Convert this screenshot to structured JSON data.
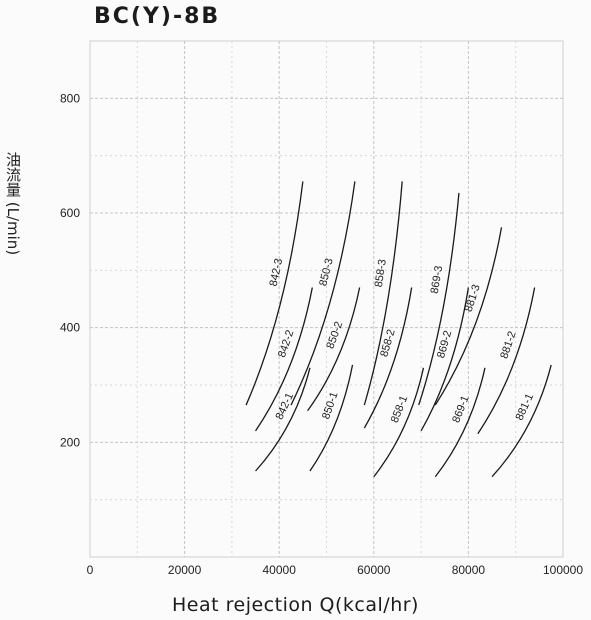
{
  "chart_data": {
    "type": "line",
    "title": "BC(Y)-8B",
    "xlabel": "Heat rejection Q(kcal/hr)",
    "ylabel": "油流量 (L/min)",
    "xlim": [
      0,
      100000
    ],
    "ylim": [
      0,
      900
    ],
    "grid": true,
    "x_ticks": [
      0,
      20000,
      40000,
      60000,
      80000,
      100000
    ],
    "x_tick_labels": [
      "0",
      "20000",
      "40000",
      "60000",
      "80000",
      "100000"
    ],
    "y_ticks": [
      200,
      400,
      600,
      800
    ],
    "y_tick_labels": [
      "200",
      "400",
      "600",
      "800"
    ],
    "series": [
      {
        "name": "842-1",
        "points": [
          [
            35000,
            150
          ],
          [
            46500,
            330
          ]
        ]
      },
      {
        "name": "842-2",
        "points": [
          [
            35000,
            220
          ],
          [
            47000,
            470
          ]
        ]
      },
      {
        "name": "842-3",
        "points": [
          [
            33000,
            265
          ],
          [
            45000,
            655
          ]
        ]
      },
      {
        "name": "850-1",
        "points": [
          [
            46500,
            150
          ],
          [
            55500,
            335
          ]
        ]
      },
      {
        "name": "850-2",
        "points": [
          [
            46000,
            255
          ],
          [
            57000,
            470
          ]
        ]
      },
      {
        "name": "850-3",
        "points": [
          [
            42500,
            265
          ],
          [
            56000,
            655
          ]
        ]
      },
      {
        "name": "858-1",
        "points": [
          [
            60000,
            140
          ],
          [
            70500,
            330
          ]
        ]
      },
      {
        "name": "858-2",
        "points": [
          [
            58000,
            225
          ],
          [
            68000,
            470
          ]
        ]
      },
      {
        "name": "858-3",
        "points": [
          [
            58000,
            265
          ],
          [
            66000,
            655
          ]
        ]
      },
      {
        "name": "869-1",
        "points": [
          [
            73000,
            140
          ],
          [
            83500,
            330
          ]
        ]
      },
      {
        "name": "869-2",
        "points": [
          [
            70000,
            220
          ],
          [
            80000,
            470
          ]
        ]
      },
      {
        "name": "869-3",
        "points": [
          [
            69500,
            265
          ],
          [
            78000,
            635
          ]
        ]
      },
      {
        "name": "881-1",
        "points": [
          [
            85000,
            140
          ],
          [
            97500,
            335
          ]
        ]
      },
      {
        "name": "881-2",
        "points": [
          [
            82000,
            215
          ],
          [
            94000,
            470
          ]
        ]
      },
      {
        "name": "881-3",
        "points": [
          [
            73000,
            265
          ],
          [
            87000,
            575
          ]
        ]
      }
    ]
  }
}
